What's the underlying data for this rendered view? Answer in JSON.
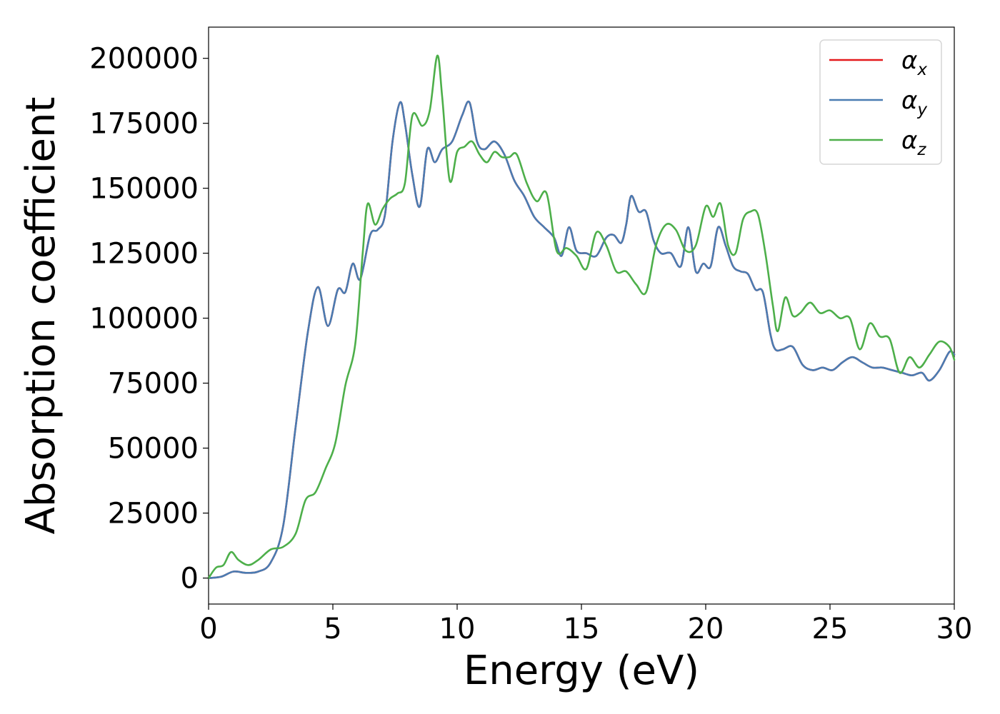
{
  "chart_data": {
    "type": "line",
    "xlabel": "Energy (eV)",
    "ylabel": "Absorption coefficient",
    "xlim": [
      0,
      30
    ],
    "ylim": [
      -10000,
      212000
    ],
    "xticks": [
      0,
      5,
      10,
      15,
      20,
      25,
      30
    ],
    "xtick_labels": [
      "0",
      "5",
      "10",
      "15",
      "20",
      "25",
      "30"
    ],
    "yticks": [
      0,
      25000,
      50000,
      75000,
      100000,
      125000,
      150000,
      175000,
      200000
    ],
    "ytick_labels": [
      "0",
      "25000",
      "50000",
      "75000",
      "100000",
      "125000",
      "150000",
      "175000",
      "200000"
    ],
    "grid": false,
    "legend_position": "top-right",
    "series": [
      {
        "name": "α_x",
        "symbol": "α",
        "subscript": "x",
        "color": "#e41a1c",
        "x": [
          0,
          0.5,
          1.0,
          1.5,
          2.0,
          2.5,
          3.0,
          3.5,
          4.0,
          4.4,
          4.8,
          5.2,
          5.5,
          5.8,
          6.1,
          6.5,
          6.8,
          7.1,
          7.4,
          7.7,
          7.9,
          8.2,
          8.5,
          8.8,
          9.1,
          9.4,
          9.8,
          10.2,
          10.5,
          10.8,
          11.1,
          11.5,
          11.9,
          12.3,
          12.7,
          13.1,
          13.5,
          13.9,
          14.2,
          14.5,
          14.8,
          15.2,
          15.6,
          16.0,
          16.3,
          16.6,
          16.8,
          17.0,
          17.3,
          17.6,
          17.9,
          18.2,
          18.6,
          19.0,
          19.3,
          19.6,
          19.9,
          20.2,
          20.5,
          20.8,
          21.1,
          21.4,
          21.7,
          22.0,
          22.3,
          22.6,
          22.8,
          23.1,
          23.5,
          23.9,
          24.3,
          24.7,
          25.1,
          25.5,
          25.9,
          26.3,
          26.7,
          27.1,
          27.5,
          27.9,
          28.3,
          28.7,
          29.0,
          29.4,
          29.8,
          30.0
        ],
        "y": [
          0,
          500,
          2500,
          2000,
          2500,
          6000,
          20000,
          58000,
          95000,
          112000,
          97000,
          111000,
          110000,
          121000,
          115000,
          132000,
          134000,
          140000,
          168000,
          183000,
          175000,
          155000,
          143000,
          165000,
          160000,
          165000,
          168000,
          178000,
          183000,
          168000,
          165000,
          168000,
          163000,
          153000,
          147000,
          139000,
          135000,
          131000,
          124000,
          135000,
          126000,
          125000,
          124000,
          131000,
          132000,
          129000,
          136000,
          147000,
          141000,
          141000,
          130000,
          125000,
          125000,
          120000,
          135000,
          118000,
          121000,
          120000,
          135000,
          128000,
          120000,
          118000,
          117000,
          111000,
          110000,
          94000,
          88000,
          88000,
          89000,
          82000,
          80000,
          81000,
          80000,
          83000,
          85000,
          83000,
          81000,
          81000,
          80000,
          79000,
          78000,
          79000,
          76000,
          80000,
          87000,
          86000
        ]
      },
      {
        "name": "α_y",
        "symbol": "α",
        "subscript": "y",
        "color": "#4a7cb2",
        "x": [
          0,
          0.5,
          1.0,
          1.5,
          2.0,
          2.5,
          3.0,
          3.5,
          4.0,
          4.4,
          4.8,
          5.2,
          5.5,
          5.8,
          6.1,
          6.5,
          6.8,
          7.1,
          7.4,
          7.7,
          7.9,
          8.2,
          8.5,
          8.8,
          9.1,
          9.4,
          9.8,
          10.2,
          10.5,
          10.8,
          11.1,
          11.5,
          11.9,
          12.3,
          12.7,
          13.1,
          13.5,
          13.9,
          14.2,
          14.5,
          14.8,
          15.2,
          15.6,
          16.0,
          16.3,
          16.6,
          16.8,
          17.0,
          17.3,
          17.6,
          17.9,
          18.2,
          18.6,
          19.0,
          19.3,
          19.6,
          19.9,
          20.2,
          20.5,
          20.8,
          21.1,
          21.4,
          21.7,
          22.0,
          22.3,
          22.6,
          22.8,
          23.1,
          23.5,
          23.9,
          24.3,
          24.7,
          25.1,
          25.5,
          25.9,
          26.3,
          26.7,
          27.1,
          27.5,
          27.9,
          28.3,
          28.7,
          29.0,
          29.4,
          29.8,
          30.0
        ],
        "y": [
          0,
          500,
          2500,
          2000,
          2500,
          6000,
          20000,
          58000,
          95000,
          112000,
          97000,
          111000,
          110000,
          121000,
          115000,
          132000,
          134000,
          140000,
          168000,
          183000,
          175000,
          155000,
          143000,
          165000,
          160000,
          165000,
          168000,
          178000,
          183000,
          168000,
          165000,
          168000,
          163000,
          153000,
          147000,
          139000,
          135000,
          131000,
          124000,
          135000,
          126000,
          125000,
          124000,
          131000,
          132000,
          129000,
          136000,
          147000,
          141000,
          141000,
          130000,
          125000,
          125000,
          120000,
          135000,
          118000,
          121000,
          120000,
          135000,
          128000,
          120000,
          118000,
          117000,
          111000,
          110000,
          94000,
          88000,
          88000,
          89000,
          82000,
          80000,
          81000,
          80000,
          83000,
          85000,
          83000,
          81000,
          81000,
          80000,
          79000,
          78000,
          79000,
          76000,
          80000,
          87000,
          86000
        ]
      },
      {
        "name": "α_z",
        "symbol": "α",
        "subscript": "z",
        "color": "#4daf4a",
        "x": [
          0,
          0.3,
          0.6,
          0.9,
          1.2,
          1.6,
          2.0,
          2.5,
          3.0,
          3.5,
          3.9,
          4.3,
          4.7,
          5.1,
          5.5,
          5.9,
          6.2,
          6.4,
          6.7,
          7.0,
          7.3,
          7.6,
          7.9,
          8.2,
          8.6,
          8.9,
          9.2,
          9.4,
          9.7,
          10.0,
          10.3,
          10.6,
          10.9,
          11.2,
          11.5,
          11.8,
          12.1,
          12.4,
          12.8,
          13.2,
          13.6,
          14.0,
          14.4,
          14.8,
          15.2,
          15.6,
          16.0,
          16.4,
          16.8,
          17.2,
          17.6,
          18.0,
          18.4,
          18.8,
          19.2,
          19.6,
          20.0,
          20.3,
          20.6,
          20.9,
          21.2,
          21.5,
          21.8,
          22.1,
          22.4,
          22.7,
          22.9,
          23.2,
          23.5,
          23.8,
          24.2,
          24.6,
          25.0,
          25.4,
          25.8,
          26.2,
          26.6,
          27.0,
          27.4,
          27.8,
          28.2,
          28.6,
          29.0,
          29.4,
          29.8,
          30.0
        ],
        "y": [
          0,
          4000,
          5000,
          10000,
          7000,
          5000,
          7000,
          11000,
          12000,
          17000,
          30000,
          33000,
          42000,
          52000,
          74000,
          90000,
          125000,
          144000,
          136000,
          142000,
          146000,
          148000,
          152000,
          178000,
          174000,
          180000,
          201000,
          185000,
          153000,
          164000,
          166000,
          168000,
          163000,
          160000,
          164000,
          162000,
          162000,
          163000,
          152000,
          145000,
          148000,
          126000,
          127000,
          124000,
          119000,
          133000,
          128000,
          118000,
          118000,
          113000,
          110000,
          128000,
          136000,
          134000,
          126000,
          128000,
          143000,
          139000,
          144000,
          128000,
          125000,
          138000,
          141000,
          140000,
          125000,
          105000,
          95000,
          108000,
          101000,
          102000,
          106000,
          102000,
          103000,
          100000,
          100000,
          88000,
          98000,
          93000,
          92000,
          79000,
          85000,
          81000,
          86000,
          91000,
          89000,
          84000
        ]
      }
    ]
  }
}
